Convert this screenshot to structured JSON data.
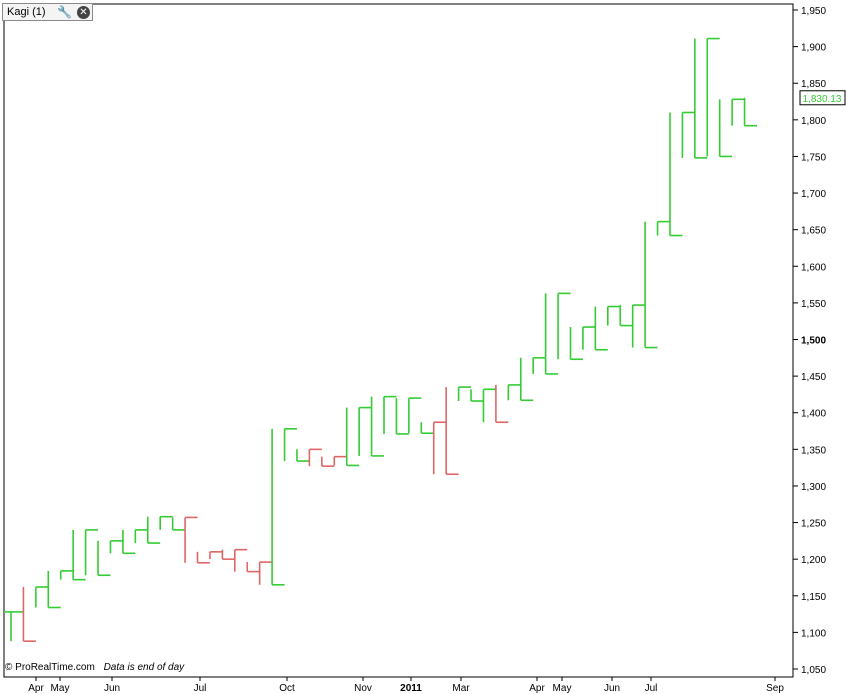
{
  "panel": {
    "tab_title": "Kagi (1)",
    "settings_icon": "wrench-icon",
    "close_icon": "close-icon"
  },
  "footer": {
    "copyright": "© ProRealTime.com",
    "note": "Data is end of day"
  },
  "colors": {
    "up": "#33cc33",
    "down": "#e06666",
    "axis": "#000000",
    "frame": "#000000",
    "last_price_label": "#33cc33"
  },
  "chart_data": {
    "type": "line",
    "style": "kagi",
    "ylim": [
      1040,
      1960
    ],
    "yticks": [
      {
        "value": 1950,
        "label": "1,950"
      },
      {
        "value": 1900,
        "label": "1,900"
      },
      {
        "value": 1850,
        "label": "1,850"
      },
      {
        "value": 1800,
        "label": "1,800"
      },
      {
        "value": 1750,
        "label": "1,750"
      },
      {
        "value": 1700,
        "label": "1,700"
      },
      {
        "value": 1650,
        "label": "1,650"
      },
      {
        "value": 1600,
        "label": "1,600"
      },
      {
        "value": 1550,
        "label": "1,550"
      },
      {
        "value": 1500,
        "label": "1,500",
        "bold": true
      },
      {
        "value": 1450,
        "label": "1,450"
      },
      {
        "value": 1400,
        "label": "1,400"
      },
      {
        "value": 1350,
        "label": "1,350"
      },
      {
        "value": 1300,
        "label": "1,300"
      },
      {
        "value": 1250,
        "label": "1,250"
      },
      {
        "value": 1200,
        "label": "1,200"
      },
      {
        "value": 1150,
        "label": "1,150"
      },
      {
        "value": 1100,
        "label": "1,100"
      },
      {
        "value": 1050,
        "label": "1,050"
      }
    ],
    "xticks": [
      {
        "label": "Apr",
        "bold": false
      },
      {
        "label": "May",
        "bold": false
      },
      {
        "label": "Jun",
        "bold": false
      },
      {
        "label": "Jul",
        "bold": false
      },
      {
        "label": "Oct",
        "bold": false
      },
      {
        "label": "Nov",
        "bold": false
      },
      {
        "label": "2011",
        "bold": true
      },
      {
        "label": "Mar",
        "bold": false
      },
      {
        "label": "Apr",
        "bold": false
      },
      {
        "label": "May",
        "bold": false
      },
      {
        "label": "Jun",
        "bold": false
      },
      {
        "label": "Jul",
        "bold": false
      },
      {
        "label": "Sep",
        "bold": false
      }
    ],
    "last_price": {
      "value": 1830.13,
      "label": "1,830.13"
    },
    "kagi_levels": [
      1128,
      1088,
      1162,
      1134,
      1184,
      1172,
      1240,
      1178,
      1225,
      1208,
      1240,
      1222,
      1258,
      1240,
      1257,
      1195,
      1210,
      1200,
      1213,
      1183,
      1196,
      1165,
      1378,
      1334,
      1350,
      1327,
      1340,
      1328,
      1407,
      1341,
      1422,
      1371,
      1420,
      1372,
      1387,
      1316,
      1435,
      1416,
      1432,
      1387,
      1438,
      1417,
      1475,
      1453,
      1563,
      1473,
      1517,
      1486,
      1545,
      1519,
      1547,
      1489,
      1661,
      1642,
      1810,
      1748,
      1911,
      1750,
      1828,
      1792,
      1830
    ],
    "segment_colors": [
      "green",
      "red",
      "green",
      "green",
      "green",
      "green",
      "green",
      "green",
      "green",
      "green",
      "green",
      "green",
      "green",
      "green",
      "red",
      "red",
      "red",
      "red",
      "red",
      "red",
      "red",
      "green",
      "green",
      "green",
      "red",
      "red",
      "red",
      "green",
      "green",
      "green",
      "green",
      "green",
      "green",
      "green",
      "red",
      "red",
      "green",
      "green",
      "green",
      "red",
      "green",
      "green",
      "green",
      "green",
      "green",
      "green",
      "green",
      "green",
      "green",
      "green",
      "green",
      "green",
      "green",
      "green",
      "green",
      "green",
      "green",
      "green",
      "green",
      "green"
    ]
  }
}
